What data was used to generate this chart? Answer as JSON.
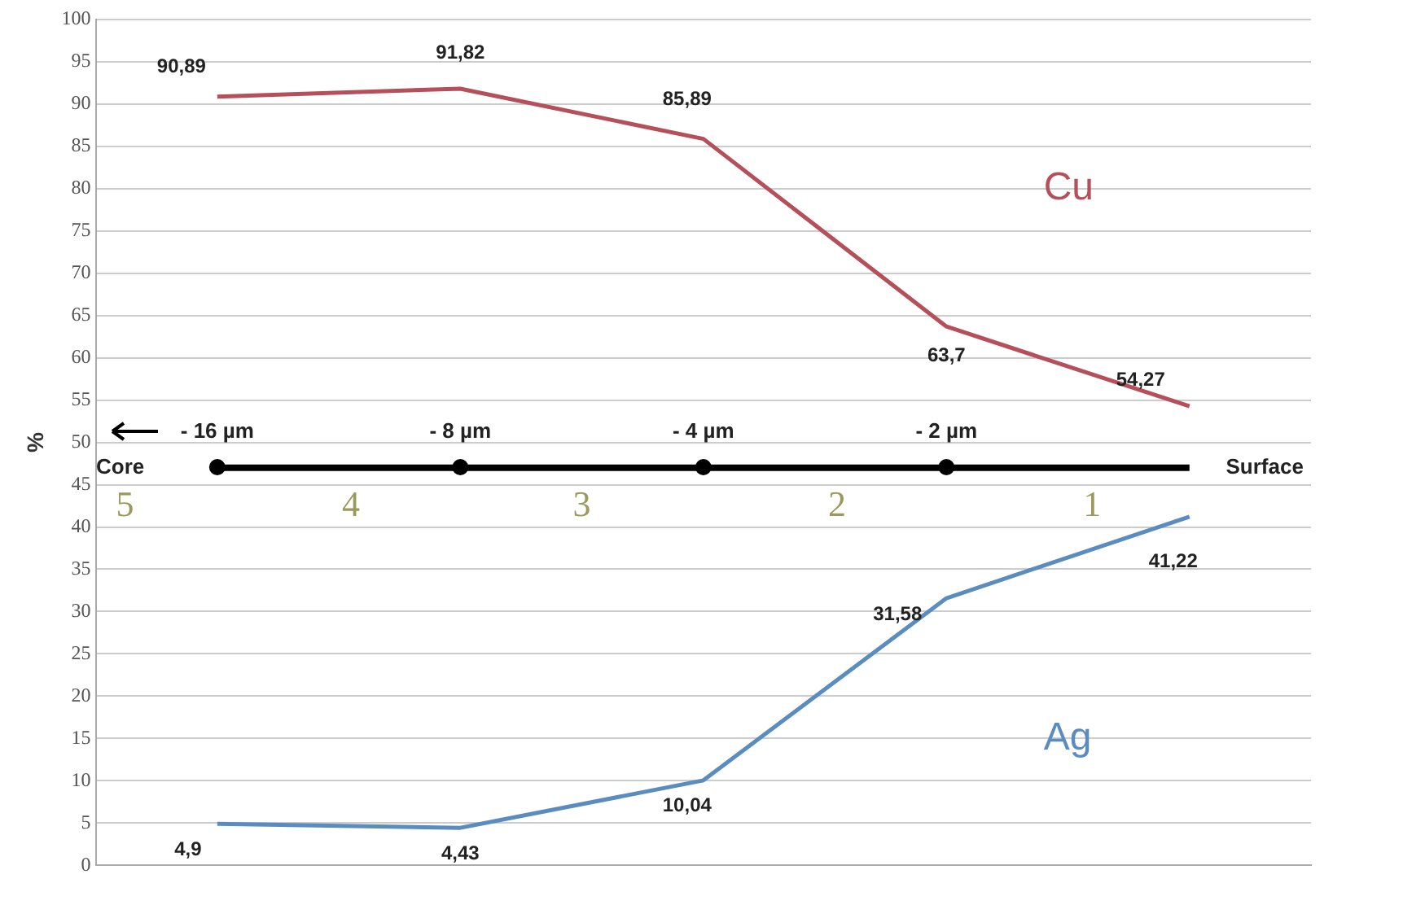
{
  "chart_data": {
    "type": "line",
    "ylabel": "%",
    "categories": [
      null,
      null,
      null,
      null,
      null
    ],
    "series": [
      {
        "name": "Cu",
        "color": "#b5505a",
        "values": [
          90.89,
          91.82,
          85.89,
          63.7,
          54.27
        ],
        "value_labels": [
          "90,89",
          "91,82",
          "85,89",
          "63,7",
          "54,27"
        ]
      },
      {
        "name": "Ag",
        "color": "#5b8cc0",
        "values": [
          4.9,
          4.43,
          10.04,
          31.58,
          41.22
        ],
        "value_labels": [
          "4,9",
          "4,43",
          "10,04",
          "31,58",
          "41,22"
        ]
      }
    ],
    "ylim": [
      0,
      100
    ],
    "yticks": [
      0,
      5,
      10,
      15,
      20,
      25,
      30,
      35,
      40,
      45,
      50,
      55,
      60,
      65,
      70,
      75,
      80,
      85,
      90,
      95,
      100
    ],
    "grid": "y",
    "legend": false,
    "marker": "none",
    "line_style": "solid",
    "ref_lines": [
      {
        "axis": "y",
        "value": 47,
        "color": "#000000"
      }
    ],
    "annotations": [
      "Core",
      "Surface",
      "- 16 µm",
      "- 8 µm",
      "- 4 µm",
      "- 2 µm",
      "5",
      "4",
      "3",
      "2",
      "1"
    ]
  }
}
